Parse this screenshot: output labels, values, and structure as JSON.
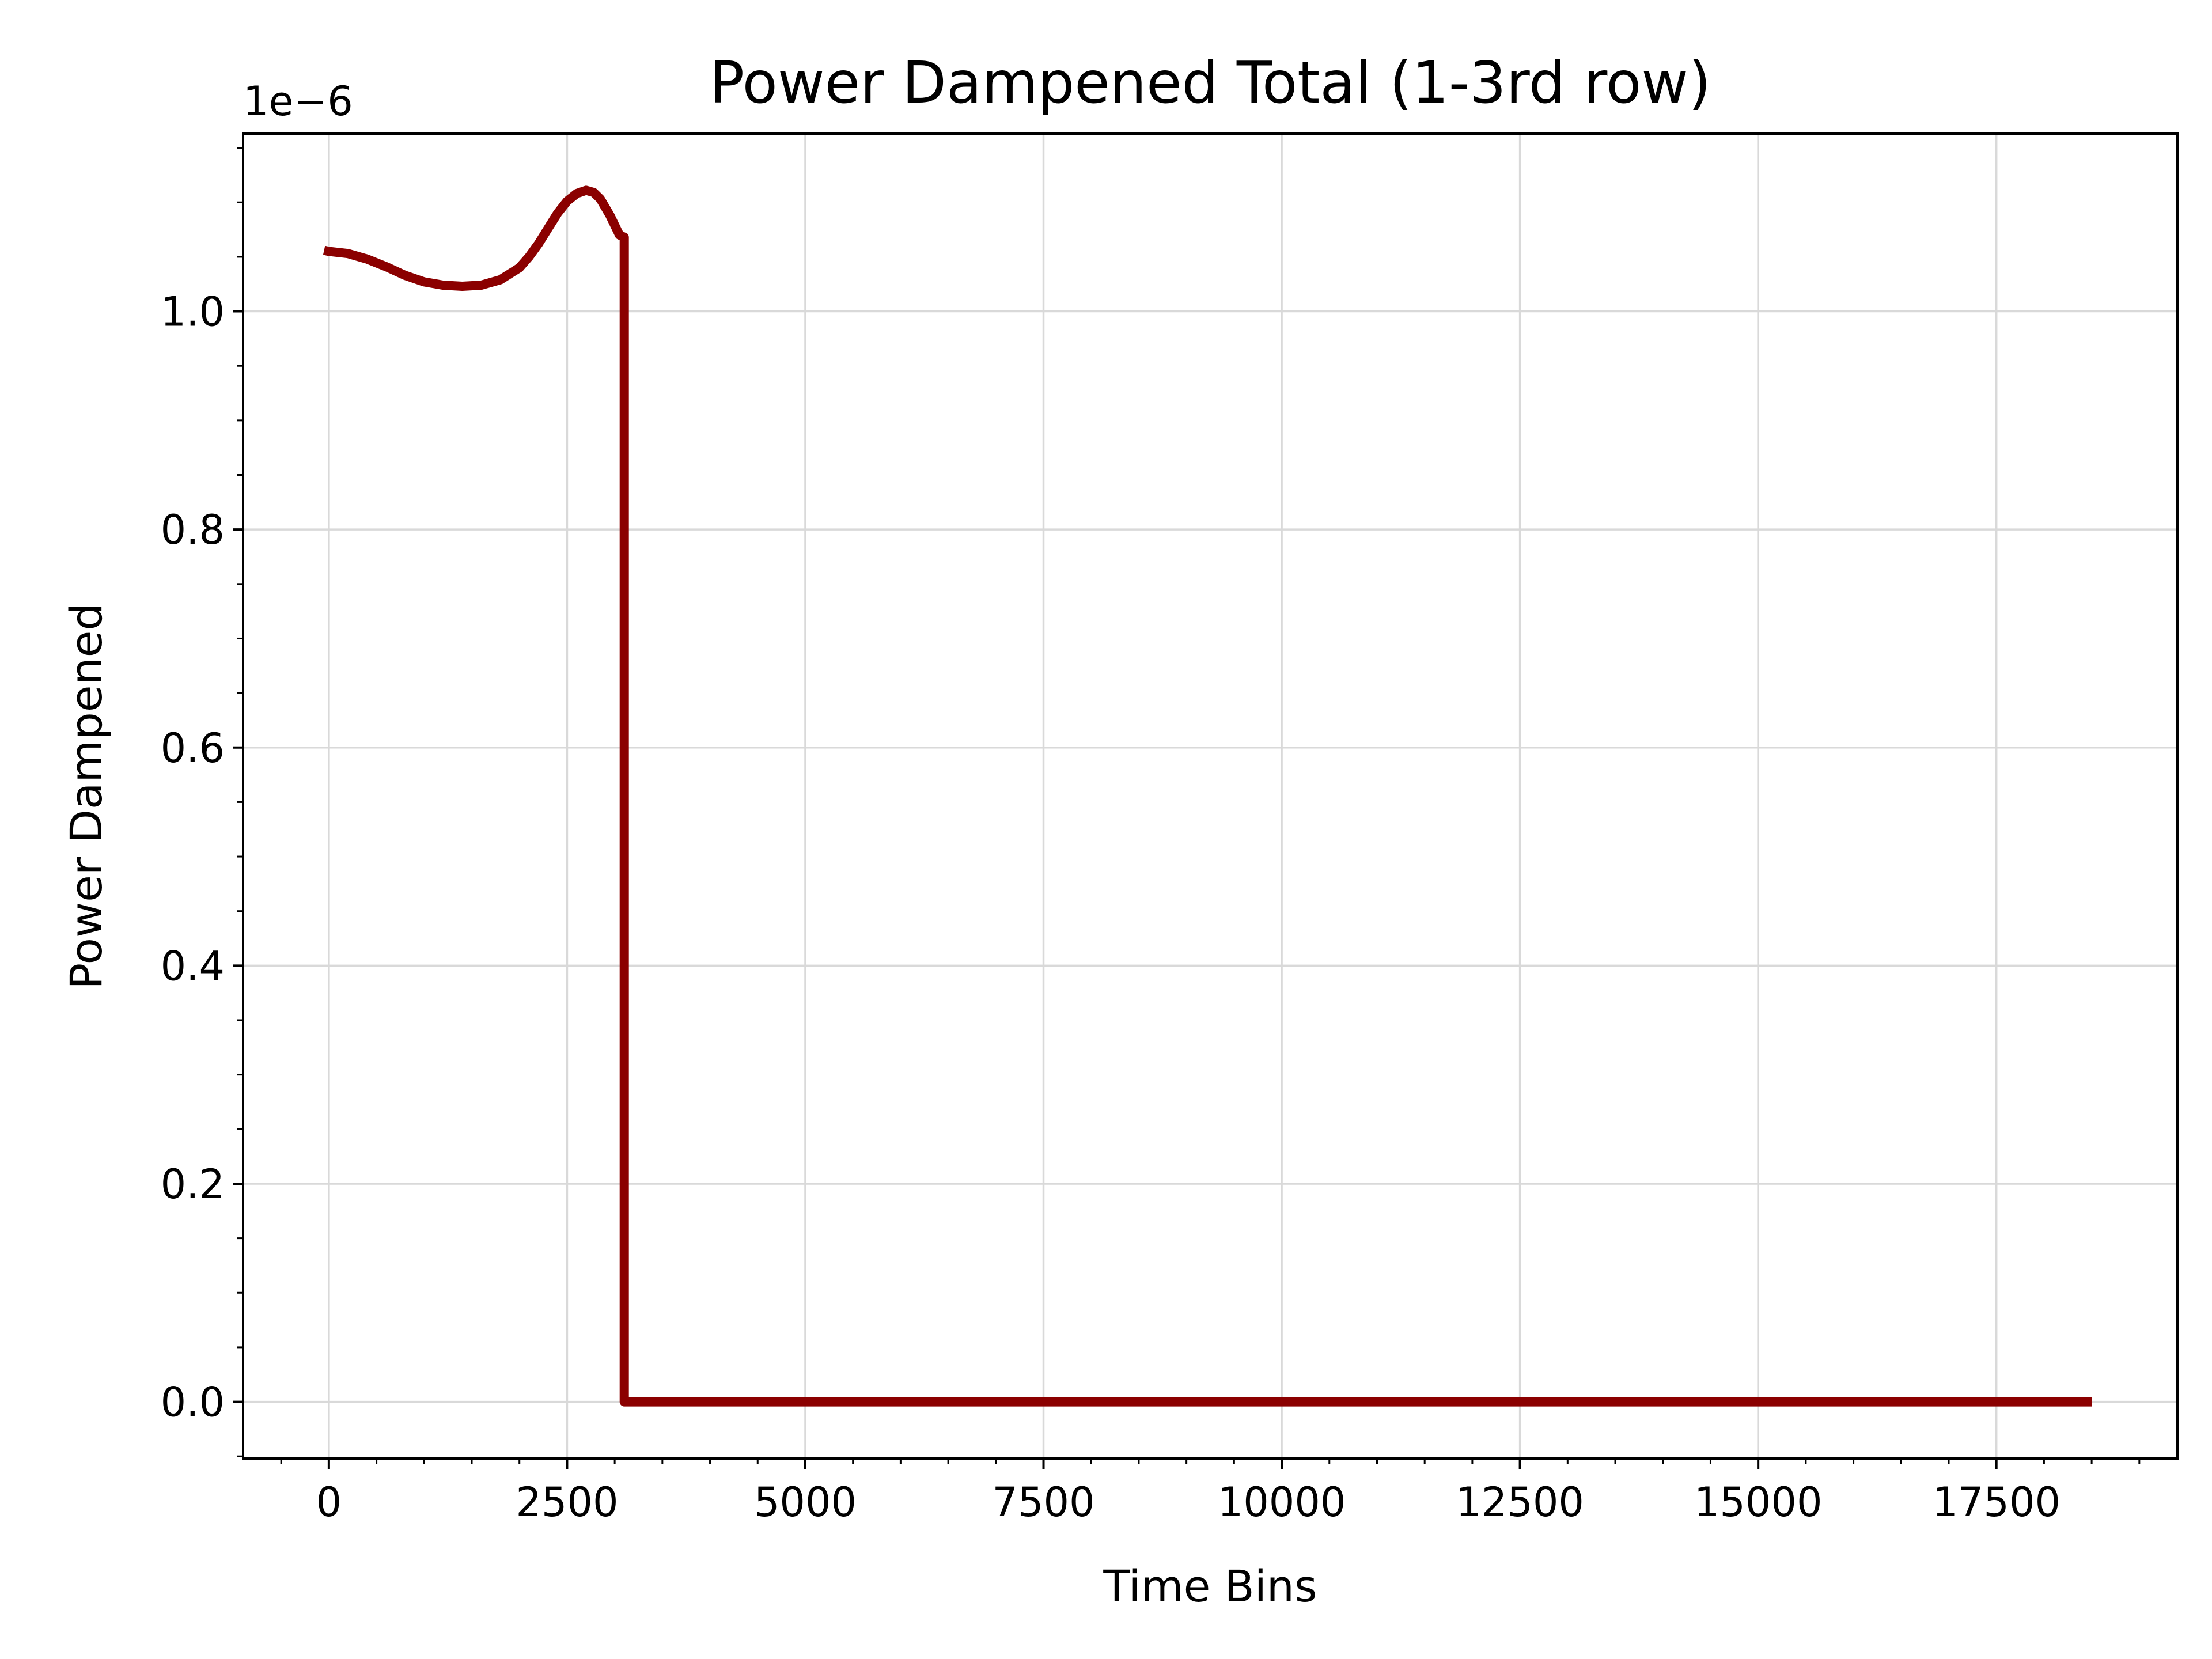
{
  "chart_data": {
    "type": "line",
    "title": "Power Dampened Total (1-3rd row)",
    "xlabel": "Time Bins",
    "ylabel": "Power Dampened",
    "offset_text": "1e−6",
    "scale_multiplier": 1e-06,
    "xlim": [
      -900,
      19400
    ],
    "ylim": [
      -0.052,
      1.163
    ],
    "xticks": [
      0,
      2500,
      5000,
      7500,
      10000,
      12500,
      15000,
      17500
    ],
    "xtick_labels": [
      "0",
      "2500",
      "5000",
      "7500",
      "10000",
      "12500",
      "15000",
      "17500"
    ],
    "yticks": [
      0.0,
      0.2,
      0.4,
      0.6,
      0.8,
      1.0
    ],
    "ytick_labels": [
      "0.0",
      "0.2",
      "0.4",
      "0.6",
      "0.8",
      "1.0"
    ],
    "x_minor_step": 500,
    "y_minor_step": 0.05,
    "grid": true,
    "line_color": "#8b0000",
    "series": [
      {
        "x": [
          -50,
          0,
          200,
          400,
          600,
          800,
          1000,
          1200,
          1400,
          1600,
          1800,
          2000,
          2100,
          2200,
          2300,
          2400,
          2500,
          2600,
          2700,
          2780,
          2850,
          2950,
          3050,
          3100,
          3100,
          3150,
          4000,
          6000,
          8000,
          10000,
          12000,
          14000,
          16000,
          18500
        ],
        "y": [
          1.056,
          1.055,
          1.053,
          1.048,
          1.041,
          1.033,
          1.027,
          1.024,
          1.023,
          1.024,
          1.029,
          1.04,
          1.05,
          1.062,
          1.076,
          1.09,
          1.101,
          1.108,
          1.111,
          1.109,
          1.103,
          1.088,
          1.07,
          1.068,
          0.0,
          0.0,
          0.0,
          0.0,
          0.0,
          0.0,
          0.0,
          0.0,
          0.0,
          0.0
        ]
      }
    ]
  }
}
